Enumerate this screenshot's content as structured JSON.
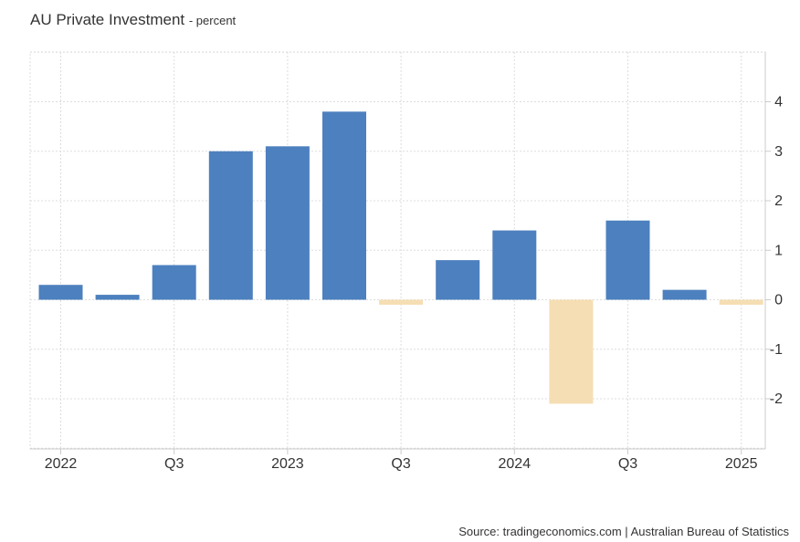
{
  "header": {
    "title": "AU Private Investment",
    "subtitle": "- percent"
  },
  "footer": {
    "source": "Source: tradingeconomics.com | Australian Bureau of Statistics"
  },
  "colors": {
    "positive": "#4d80be",
    "negative": "#f5deb3",
    "grid": "#dddddd",
    "axis": "#cccccc"
  },
  "chart_data": {
    "type": "bar",
    "title": "AU Private Investment",
    "subtitle": "percent",
    "categories": [
      "Q1 2022",
      "Q2 2022",
      "Q3 2022",
      "Q4 2022",
      "Q1 2023",
      "Q2 2023",
      "Q3 2023",
      "Q4 2023",
      "Q1 2024",
      "Q2 2024",
      "Q3 2024",
      "Q4 2024",
      "Q1 2025"
    ],
    "values": [
      0.3,
      0.1,
      0.7,
      3.0,
      3.1,
      3.8,
      -0.1,
      0.8,
      1.4,
      -2.1,
      1.6,
      0.2,
      -0.1
    ],
    "x_tick_labels": [
      {
        "index": 0,
        "label": "2022"
      },
      {
        "index": 2,
        "label": "Q3"
      },
      {
        "index": 4,
        "label": "2023"
      },
      {
        "index": 6,
        "label": "Q3"
      },
      {
        "index": 8,
        "label": "2024"
      },
      {
        "index": 10,
        "label": "Q3"
      },
      {
        "index": 12,
        "label": "2025"
      }
    ],
    "y_ticks": [
      -2,
      -1,
      0,
      1,
      2,
      3,
      4
    ],
    "ylim": [
      -3,
      5
    ],
    "y_axis_side": "right",
    "grid": true,
    "legend": false
  }
}
